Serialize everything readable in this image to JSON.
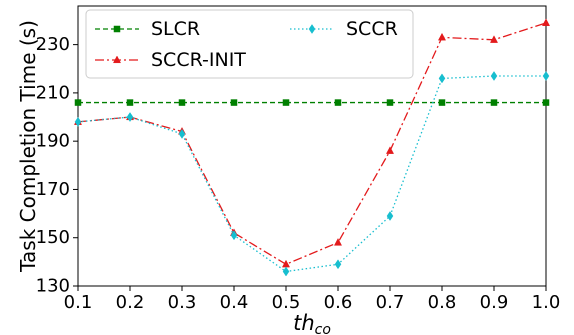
{
  "chart_data": {
    "type": "line",
    "xlabel_base": "th",
    "xlabel_sub": "co",
    "ylabel": "Task Completion Time (s)",
    "x": [
      0.1,
      0.2,
      0.3,
      0.4,
      0.5,
      0.6,
      0.7,
      0.8,
      0.9,
      1.0
    ],
    "xticks": [
      "0.1",
      "0.2",
      "0.3",
      "0.4",
      "0.5",
      "0.6",
      "0.7",
      "0.8",
      "0.9",
      "1.0"
    ],
    "yticks": [
      "130",
      "150",
      "170",
      "190",
      "210",
      "230"
    ],
    "xlim": [
      0.1,
      1.0
    ],
    "ylim": [
      130,
      246
    ],
    "grid": false,
    "legend_position": "top-left",
    "series": [
      {
        "name": "SLCR",
        "color": "#008000",
        "dash": "5,3",
        "marker": "square",
        "values": [
          206,
          206,
          206,
          206,
          206,
          206,
          206,
          206,
          206,
          206
        ]
      },
      {
        "name": "SCCR-INIT",
        "color": "#e31a1c",
        "dash": "9,3,2,3",
        "marker": "triangle",
        "values": [
          198,
          200,
          194,
          152,
          139,
          148,
          186,
          233,
          232,
          239
        ]
      },
      {
        "name": "SCCR",
        "color": "#17becf",
        "dash": "1.5,2.5",
        "marker": "diamond",
        "values": [
          198,
          200,
          193,
          151,
          136,
          139,
          159,
          216,
          217,
          217
        ]
      }
    ]
  }
}
